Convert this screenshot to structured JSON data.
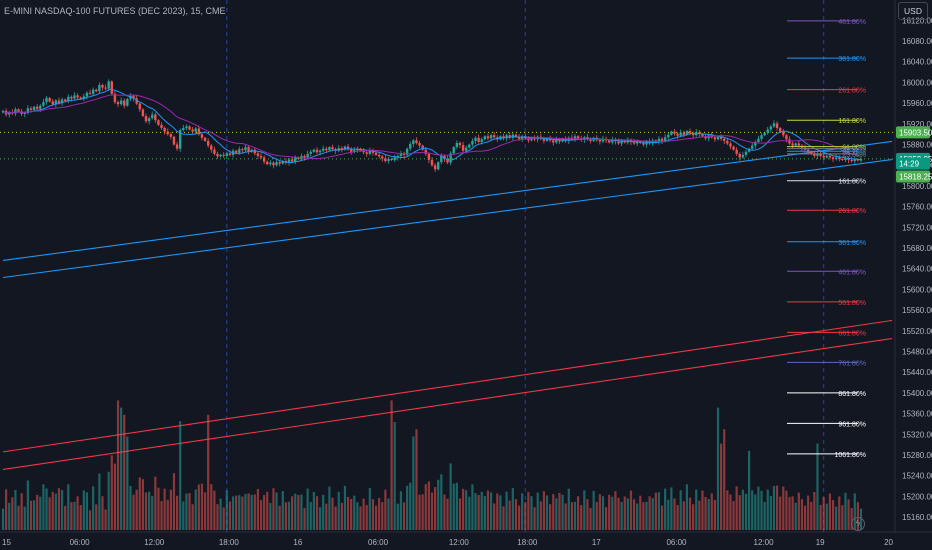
{
  "header": {
    "title": "E-MINI NASDAQ-100 FUTURES (DEC 2023), 15, CME"
  },
  "currency_button": "USD",
  "chart_data": {
    "type": "candlestick",
    "symbol": "E-MINI NASDAQ-100 FUTURES (DEC 2023)",
    "timeframe": "15",
    "exchange": "CME",
    "ylim": [
      15140,
      16140
    ],
    "y_ticks": [
      "16120.00",
      "16080.00",
      "16040.00",
      "16000.00",
      "15960.00",
      "15920.00",
      "15880.00",
      "15840.00",
      "15800.00",
      "15760.00",
      "15720.00",
      "15680.00",
      "15640.00",
      "15600.00",
      "15560.00",
      "15520.00",
      "15480.00",
      "15440.00",
      "15400.00",
      "15360.00",
      "15320.00",
      "15280.00",
      "15240.00",
      "15200.00",
      "15160.00"
    ],
    "x_ticks": [
      {
        "label": "15",
        "slot": 0
      },
      {
        "label": "06:00",
        "slot": 24
      },
      {
        "label": "12:00",
        "slot": 48
      },
      {
        "label": "18:00",
        "slot": 72
      },
      {
        "label": "16",
        "slot": 96
      },
      {
        "label": "06:00",
        "slot": 120
      },
      {
        "label": "12:00",
        "slot": 146
      },
      {
        "label": "18:00",
        "slot": 168
      },
      {
        "label": "17",
        "slot": 192
      },
      {
        "label": "06:00",
        "slot": 216
      },
      {
        "label": "12:00",
        "slot": 244
      },
      {
        "label": "19",
        "slot": 264
      },
      {
        "label": "20",
        "slot": 286
      }
    ],
    "session_breaks": [
      72,
      168,
      264
    ],
    "price_labels": [
      {
        "text": "15903.50",
        "value": 15903.5,
        "color": "#4caf50"
      },
      {
        "text": "15852.25",
        "value": 15852.25,
        "color": "#089981"
      },
      {
        "text": "14:29",
        "value": 15843,
        "color": "#089981"
      },
      {
        "text": "15818.25",
        "value": 15818.25,
        "color": "#4caf50"
      }
    ],
    "reference_lines": [
      15903.5,
      15852.25
    ],
    "fib_levels": [
      {
        "label": "461.80%",
        "value": 16119,
        "color": "#7e57c2"
      },
      {
        "label": "361.80%",
        "value": 16047,
        "color": "#2196f3"
      },
      {
        "label": "261.80%",
        "value": 15986,
        "color": "#f23645"
      },
      {
        "label": "161.80%",
        "value": 15927,
        "color": "#c6d93c"
      },
      {
        "label": "61.80%",
        "value": 15876,
        "color": "#c6d93c"
      },
      {
        "label": "50.00%",
        "value": 15872,
        "color": "#787b86"
      },
      {
        "label": "38.20%",
        "value": 15867,
        "color": "#2196f3"
      },
      {
        "label": "23.60%",
        "value": 15862,
        "color": "#787b86"
      },
      {
        "label": "161.80%",
        "value": 15810,
        "color": "#e0e3eb"
      },
      {
        "label": "261.80%",
        "value": 15753,
        "color": "#f23645"
      },
      {
        "label": "361.80%",
        "value": 15692,
        "color": "#2196f3"
      },
      {
        "label": "461.80%",
        "value": 15635,
        "color": "#7e57c2"
      },
      {
        "label": "561.80%",
        "value": 15576,
        "color": "#f23645"
      },
      {
        "label": "661.80%",
        "value": 15517,
        "color": "#f23645"
      },
      {
        "label": "761.80%",
        "value": 15459,
        "color": "#5c6bc0"
      },
      {
        "label": "861.80%",
        "value": 15400,
        "color": "#ffffff"
      },
      {
        "label": "961.80%",
        "value": 15341,
        "color": "#ffffff"
      },
      {
        "label": "1061.80%",
        "value": 15282,
        "color": "#ffffff"
      }
    ],
    "channel_lines": [
      {
        "from": [
          0,
          15656
        ],
        "to": [
          286,
          15886
        ],
        "color": "#2196f3"
      },
      {
        "from": [
          0,
          15623
        ],
        "to": [
          286,
          15851
        ],
        "color": "#2196f3"
      },
      {
        "from": [
          0,
          15286
        ],
        "to": [
          286,
          15540
        ],
        "color": "#f23645"
      },
      {
        "from": [
          0,
          15252
        ],
        "to": [
          286,
          15505
        ],
        "color": "#f23645"
      }
    ],
    "closes": [
      15945,
      15938,
      15942,
      15940,
      15948,
      15944,
      15939,
      15941,
      15950,
      15947,
      15953,
      15949,
      15955,
      15962,
      15970,
      15963,
      15958,
      15965,
      15960,
      15967,
      15964,
      15972,
      15969,
      15975,
      15971,
      15968,
      15973,
      15980,
      15978,
      15986,
      15983,
      15995,
      15990,
      15988,
      16002,
      15978,
      15962,
      15958,
      15965,
      15955,
      15968,
      15974,
      15969,
      15959,
      15948,
      15935,
      15925,
      15931,
      15938,
      15927,
      15918,
      15912,
      15905,
      15900,
      15895,
      15880,
      15872,
      15908,
      15912,
      15915,
      15909,
      15905,
      15911,
      15900,
      15893,
      15887,
      15878,
      15870,
      15862,
      15857,
      15860,
      15858,
      15863,
      15860,
      15868,
      15864,
      15871,
      15869,
      15875,
      15866,
      15870,
      15863,
      15858,
      15855,
      15847,
      15842,
      15845,
      15840,
      15846,
      15843,
      15848,
      15845,
      15851,
      15847,
      15855,
      15852,
      15858,
      15855,
      15862,
      15866,
      15870,
      15865,
      15868,
      15872,
      15869,
      15875,
      15871,
      15868,
      15873,
      15870,
      15876,
      15872,
      15866,
      15869,
      15872,
      15868,
      15865,
      15862,
      15868,
      15864,
      15860,
      15857,
      15853,
      15848,
      15852,
      15850,
      15855,
      15858,
      15862,
      15860,
      15872,
      15881,
      15888,
      15883,
      15878,
      15870,
      15862,
      15850,
      15840,
      15832,
      15846,
      15858,
      15852,
      15845,
      15863,
      15875,
      15883,
      15879,
      15868,
      15874,
      15880,
      15887,
      15893,
      15885,
      15890,
      15896,
      15892,
      15898,
      15894,
      15890,
      15896,
      15892,
      15898,
      15893,
      15899,
      15895,
      15891,
      15896,
      15892,
      15888,
      15893,
      15890,
      15895,
      15891,
      15887,
      15892,
      15888,
      15884,
      15889,
      15886,
      15891,
      15887,
      15893,
      15890,
      15896,
      15892,
      15889,
      15894,
      15890,
      15887,
      15893,
      15889,
      15886,
      15891,
      15888,
      15884,
      15890,
      15886,
      15882,
      15887,
      15884,
      15889,
      15885,
      15882,
      15886,
      15883,
      15880,
      15886,
      15882,
      15888,
      15884,
      15891,
      15887,
      15894,
      15899,
      15905,
      15901,
      15897,
      15903,
      15899,
      15906,
      15902,
      15898,
      15904,
      15900,
      15896,
      15892,
      15898,
      15894,
      15890,
      15895,
      15891,
      15887,
      15882,
      15876,
      15870,
      15862,
      15855,
      15860,
      15866,
      15872,
      15878,
      15885,
      15891,
      15898,
      15903,
      15909,
      15915,
      15921,
      15912,
      15905,
      15898,
      15890,
      15882,
      15878,
      15882,
      15878,
      15874,
      15870,
      15866,
      15862,
      15858,
      15862,
      15858,
      15855,
      15858,
      15855,
      15852,
      15855,
      15852,
      15850,
      15853,
      15850,
      15848,
      15852,
      15849,
      15852
    ],
    "volume_scale": [
      0,
      400
    ]
  }
}
